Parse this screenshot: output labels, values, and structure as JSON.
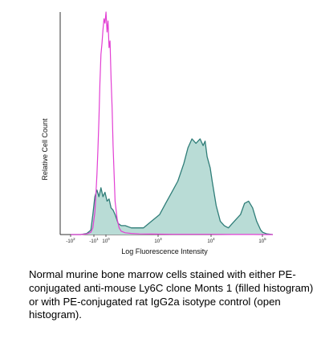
{
  "chart_data": {
    "type": "area",
    "title": "",
    "xlabel": "Log Fluorescence Intensity",
    "ylabel": "Relative Cell Count",
    "x_scale": "biexponential",
    "x_ticks": [
      {
        "base": "-10",
        "exp": "2"
      },
      {
        "base": "-10",
        "exp": "1"
      },
      {
        "base": "10",
        "exp": "0"
      },
      {
        "base": "10",
        "exp": "3"
      },
      {
        "base": "10",
        "exp": "4"
      },
      {
        "base": "10",
        "exp": "5"
      }
    ],
    "grid": false,
    "legend": "none",
    "series": [
      {
        "style": "filled",
        "color": "#2f7d78",
        "fill": "#b9dcd6",
        "x": [
          0.0,
          0.05,
          0.08,
          0.1,
          0.11,
          0.12,
          0.13,
          0.14,
          0.15,
          0.16,
          0.17,
          0.18,
          0.19,
          0.2,
          0.21,
          0.22,
          0.235,
          0.25,
          0.27,
          0.3,
          0.33,
          0.36,
          0.4,
          0.44,
          0.47,
          0.5,
          0.53,
          0.56,
          0.58,
          0.6,
          0.62,
          0.64,
          0.655,
          0.665,
          0.675,
          0.69,
          0.7,
          0.72,
          0.74,
          0.76,
          0.78,
          0.8,
          0.82,
          0.84,
          0.86,
          0.88,
          0.9,
          0.92,
          0.94,
          0.95,
          0.97,
          1.0
        ],
        "values": [
          0,
          0,
          0.5,
          2,
          9,
          17,
          20,
          17,
          21,
          17,
          19,
          15,
          16,
          12,
          11,
          9,
          5,
          4,
          4,
          3,
          3,
          3,
          6,
          9,
          14,
          19,
          24,
          32,
          39,
          43,
          41,
          43,
          40,
          42,
          35,
          30,
          24,
          13,
          6,
          4,
          3,
          5,
          7,
          9,
          14,
          15,
          12,
          6,
          2,
          1,
          0.3,
          0
        ]
      },
      {
        "style": "open",
        "color": "#e23fd3",
        "x": [
          0.0,
          0.05,
          0.08,
          0.1,
          0.11,
          0.12,
          0.125,
          0.13,
          0.135,
          0.14,
          0.145,
          0.15,
          0.155,
          0.16,
          0.165,
          0.17,
          0.175,
          0.18,
          0.185,
          0.19,
          0.195,
          0.2,
          0.205,
          0.21,
          0.215,
          0.22,
          0.23,
          0.24,
          0.25,
          0.27,
          0.3,
          0.34,
          0.4,
          0.5,
          0.6,
          0.7,
          0.8,
          0.9,
          0.95,
          1.0
        ],
        "values": [
          0,
          0,
          0.3,
          1,
          3,
          10,
          18,
          27,
          38,
          52,
          68,
          81,
          86,
          92,
          97,
          95,
          100,
          91,
          96,
          84,
          87,
          70,
          57,
          40,
          27,
          15,
          7,
          3,
          1.5,
          0.8,
          0.5,
          0.3,
          0.2,
          0.1,
          0.1,
          0.1,
          0.05,
          0.05,
          0,
          0
        ]
      }
    ]
  },
  "caption": "Normal murine bone marrow cells stained with either PE-conjugated anti-mouse Ly6C clone Monts 1 (filled histogram) or with PE-conjugated rat IgG2a isotype control (open histogram).",
  "colors": {
    "axis": "#333333",
    "filled_line": "#2f7d78",
    "filled_area": "#b9dcd6",
    "open_line": "#e23fd3"
  }
}
